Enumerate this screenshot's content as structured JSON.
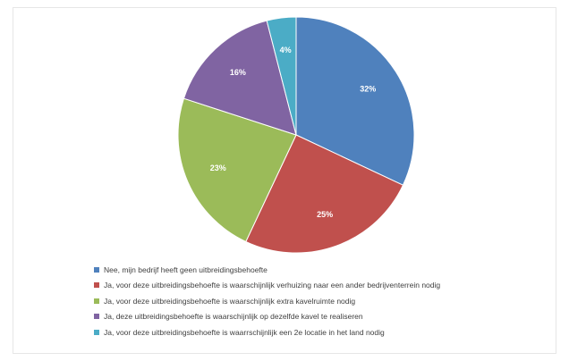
{
  "chart_data": {
    "type": "pie",
    "title": "",
    "categories": [
      "Nee, mijn bedrijf heeft geen uitbreidingsbehoefte",
      "Ja, voor deze uitbreidingsbehoefte is waarschijnlijk verhuizing naar een ander bedrijventerrein nodig",
      "Ja, voor deze uitbreidingsbehoefte is waarschijnlijk extra kavelruimte nodig",
      "Ja, deze uitbreidingsbehoefte is waarschijnlijk op dezelfde kavel te realiseren",
      "Ja, voor deze uitbreidingsbehoefte is waarrschijnlijk een 2e locatie in het land nodig"
    ],
    "values": [
      32,
      25,
      23,
      16,
      4
    ],
    "labels": [
      "32%",
      "25%",
      "23%",
      "16%",
      "4%"
    ],
    "colors": [
      "#4f81bd",
      "#c0504d",
      "#9bbb59",
      "#8064a2",
      "#4bacc6"
    ],
    "legend_position": "bottom",
    "start_angle": "12 o'clock",
    "direction": "clockwise"
  }
}
